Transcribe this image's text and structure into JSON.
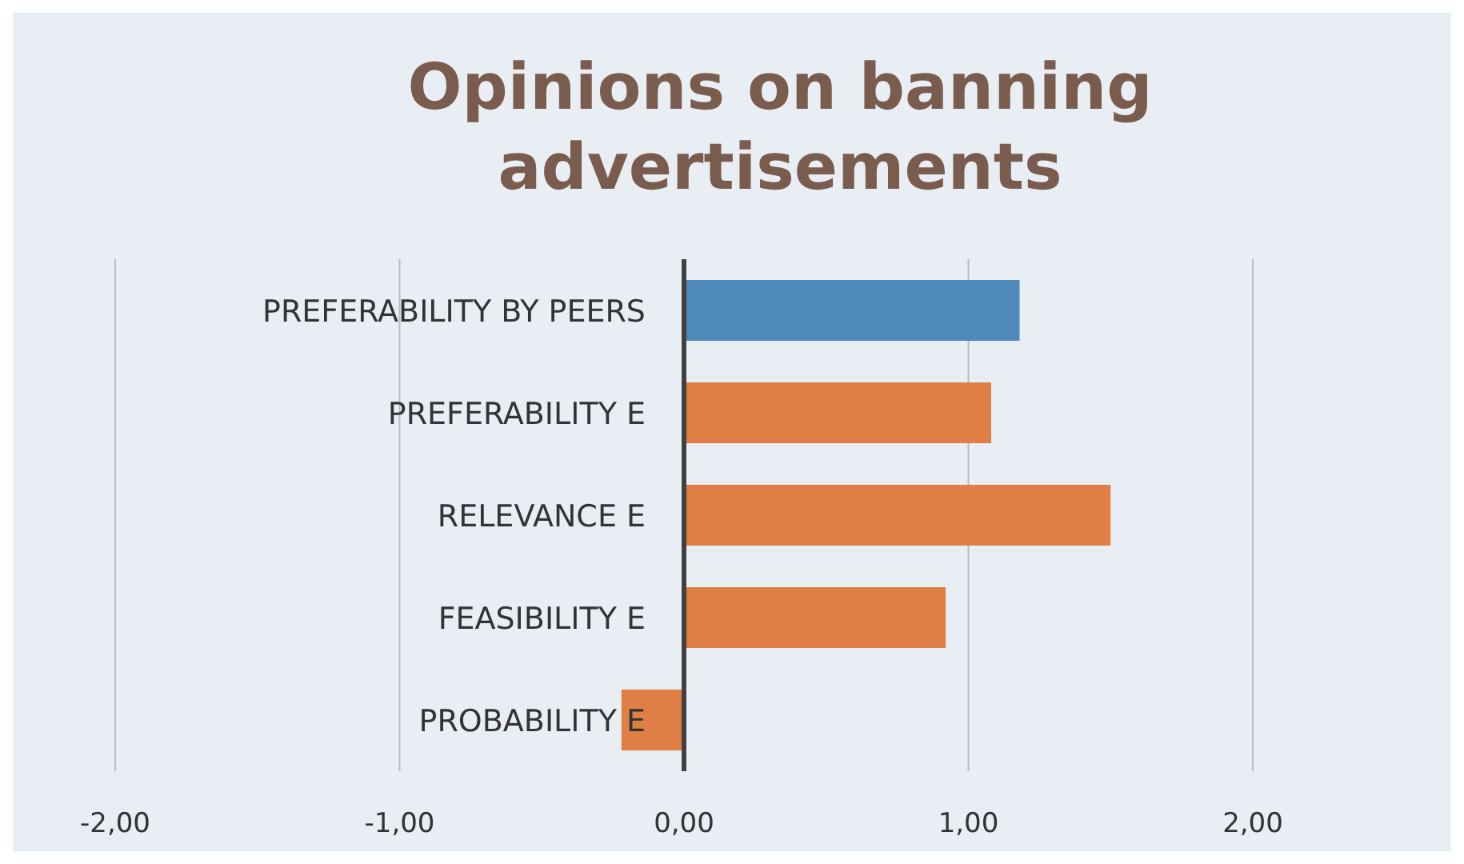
{
  "chart_data": {
    "type": "bar",
    "orientation": "horizontal",
    "title": "Opinions on banning advertisements",
    "categories": [
      "PREFERABILITY BY PEERS",
      "PREFERABILITY E",
      "RELEVANCE E",
      "FEASIBILITY E",
      "PROBABILITY E"
    ],
    "values": [
      1.18,
      1.08,
      1.5,
      0.92,
      -0.22
    ],
    "colors": [
      "#4f88bb",
      "#e07f45",
      "#e07f45",
      "#e07f45",
      "#e07f45"
    ],
    "xlim": [
      -2,
      2
    ],
    "xticks": [
      {
        "value": -2,
        "label": "-2,00"
      },
      {
        "value": -1,
        "label": "-1,00"
      },
      {
        "value": 0,
        "label": "0,00"
      },
      {
        "value": 1,
        "label": "1,00"
      },
      {
        "value": 2,
        "label": "2,00"
      }
    ],
    "grid": "x"
  }
}
